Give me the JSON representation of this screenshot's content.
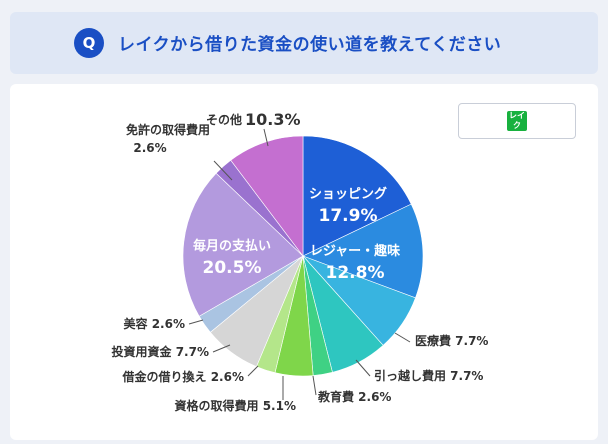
{
  "header": {
    "badge": "Q",
    "title": "レイクから借りた資金の使い道を教えてください"
  },
  "brand": {
    "logo_text": "レイク",
    "color": "#18b13f"
  },
  "chart_data": {
    "type": "pie",
    "title": "レイクから借りた資金の使い道を教えてください",
    "unit": "%",
    "slices": [
      {
        "name": "ショッピング",
        "value": 17.9,
        "color": "#1e5fd6"
      },
      {
        "name": "レジャー・趣味",
        "value": 12.8,
        "color": "#2b8be0"
      },
      {
        "name": "医療費",
        "value": 7.7,
        "color": "#38b4e0"
      },
      {
        "name": "引っ越し費用",
        "value": 7.7,
        "color": "#2ec6c0"
      },
      {
        "name": "教育費",
        "value": 2.6,
        "color": "#3fd184"
      },
      {
        "name": "資格の取得費用",
        "value": 5.1,
        "color": "#7fd64a"
      },
      {
        "name": "借金の借り換え",
        "value": 2.6,
        "color": "#b4e68a"
      },
      {
        "name": "投資用資金",
        "value": 7.7,
        "color": "#d6d6d6"
      },
      {
        "name": "美容",
        "value": 2.6,
        "color": "#aac4e2"
      },
      {
        "name": "毎月の支払い",
        "value": 20.5,
        "color": "#b39ade"
      },
      {
        "name": "免許の取得費用",
        "value": 2.6,
        "color": "#9a72cf"
      },
      {
        "name": "その他",
        "value": 10.3,
        "color": "#c46fd0"
      }
    ]
  }
}
